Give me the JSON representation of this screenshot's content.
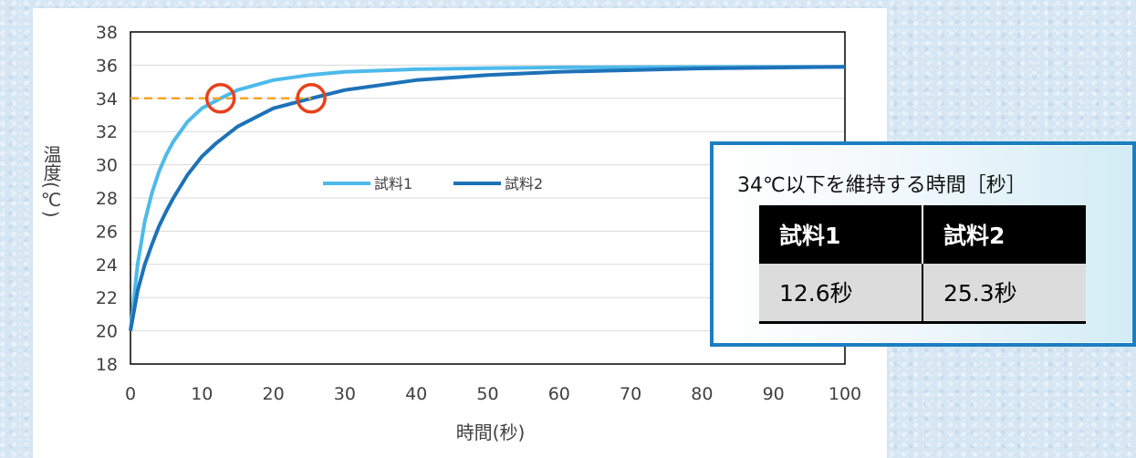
{
  "chart_data": {
    "type": "line",
    "xlabel": "時間(秒)",
    "ylabel": "温度(℃)",
    "xlim": [
      0,
      100
    ],
    "ylim": [
      18,
      38
    ],
    "x_ticks": [
      0,
      10,
      20,
      30,
      40,
      50,
      60,
      70,
      80,
      90,
      100
    ],
    "y_ticks": [
      18,
      20,
      22,
      24,
      26,
      28,
      30,
      32,
      34,
      36,
      38
    ],
    "grid": "horizontal",
    "legend_position": "center-left",
    "series": [
      {
        "name": "試料1",
        "color": "#4dbaea",
        "x": [
          0,
          1,
          2,
          3,
          4,
          5,
          6,
          8,
          10,
          12.6,
          15,
          20,
          25,
          30,
          40,
          50,
          60,
          70,
          80,
          90,
          100
        ],
        "y": [
          20.0,
          24.0,
          26.6,
          28.3,
          29.6,
          30.6,
          31.4,
          32.6,
          33.4,
          34.0,
          34.5,
          35.1,
          35.4,
          35.6,
          35.75,
          35.82,
          35.86,
          35.88,
          35.89,
          35.9,
          35.9
        ]
      },
      {
        "name": "試料2",
        "color": "#1d72b8",
        "x": [
          0,
          1,
          2,
          3,
          4,
          5,
          6,
          8,
          10,
          12,
          15,
          20,
          25.3,
          30,
          40,
          50,
          60,
          70,
          80,
          90,
          100
        ],
        "y": [
          20.0,
          22.4,
          24.0,
          25.2,
          26.3,
          27.2,
          28.0,
          29.4,
          30.5,
          31.3,
          32.3,
          33.4,
          34.0,
          34.5,
          35.1,
          35.4,
          35.6,
          35.7,
          35.8,
          35.85,
          35.9
        ]
      }
    ],
    "threshold": {
      "y": 34,
      "x_start": 0,
      "x_end": 25.3,
      "color": "#f5a623"
    },
    "markers": [
      {
        "x": 12.6,
        "y": 34,
        "color": "#e8401c"
      },
      {
        "x": 25.3,
        "y": 34,
        "color": "#e8401c"
      }
    ]
  },
  "table": {
    "title": "34℃以下を維持する時間［秒］",
    "headers": [
      "試料1",
      "試料2"
    ],
    "values": [
      "12.6秒",
      "25.3秒"
    ]
  },
  "colors": {
    "background": "#d6e6f3",
    "table_border": "#1b7fc2",
    "table_header_bg": "#000000",
    "table_cell_bg": "#dcdcdc"
  }
}
